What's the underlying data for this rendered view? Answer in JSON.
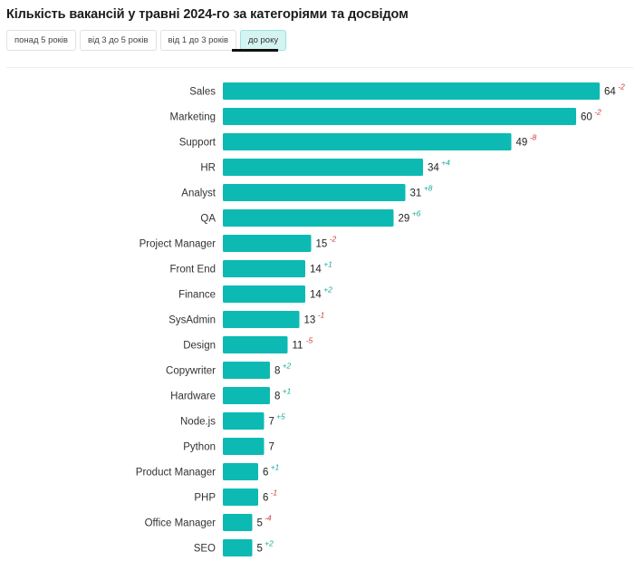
{
  "header": {
    "title": "Кількість вакансій у травні 2024-го за категоріями та досвідом"
  },
  "filters": {
    "tabs": [
      {
        "label": "понад 5 років",
        "active": false
      },
      {
        "label": "від 3 до 5 років",
        "active": false
      },
      {
        "label": "від 1 до 3 років",
        "active": false
      },
      {
        "label": "до року",
        "active": true
      }
    ]
  },
  "colors": {
    "bar": "#0dbab3",
    "delta_positive": "#1aa89c",
    "delta_negative": "#d03a3a"
  },
  "chart_data": {
    "type": "bar",
    "orientation": "horizontal",
    "title": "",
    "xlabel": "",
    "ylabel": "",
    "xlim": [
      0,
      64
    ],
    "grid": false,
    "legend": "none",
    "categories": [
      "Sales",
      "Marketing",
      "Support",
      "HR",
      "Analyst",
      "QA",
      "Project Manager",
      "Front End",
      "Finance",
      "SysAdmin",
      "Design",
      "Copywriter",
      "Hardware",
      "Node.js",
      "Python",
      "Product Manager",
      "PHP",
      "Office Manager",
      "SEO"
    ],
    "values": [
      64,
      60,
      49,
      34,
      31,
      29,
      15,
      14,
      14,
      13,
      11,
      8,
      8,
      7,
      7,
      6,
      6,
      5,
      5
    ],
    "deltas": [
      "-2",
      "-2",
      "-8",
      "+4",
      "+8",
      "+6",
      "-2",
      "+1",
      "+2",
      "-1",
      "-5",
      "+2",
      "+1",
      "+5",
      "",
      "+1",
      "-1",
      "-4",
      "+2"
    ]
  }
}
